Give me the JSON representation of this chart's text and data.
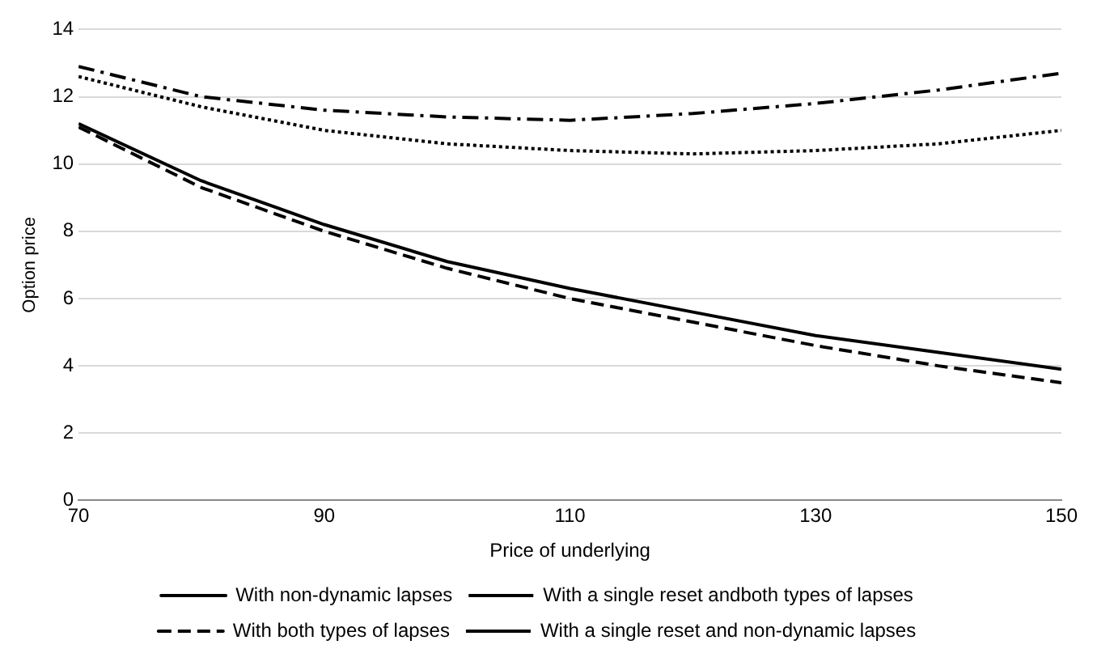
{
  "chart_data": {
    "type": "line",
    "xlabel": "Price of underlying",
    "ylabel": "Option price",
    "x": [
      70,
      80,
      90,
      100,
      110,
      120,
      130,
      140,
      150
    ],
    "xlim": [
      70,
      150
    ],
    "xticks": [
      70,
      90,
      110,
      130,
      150
    ],
    "ylim": [
      0,
      14
    ],
    "yticks": [
      0,
      2,
      4,
      6,
      8,
      10,
      12,
      14
    ],
    "grid": "y",
    "legend": "bottom",
    "marker": "none",
    "series": [
      {
        "name": "With non-dynamic lapses",
        "color": "#000000",
        "line_style": "solid",
        "values": [
          11.2,
          9.5,
          8.2,
          7.1,
          6.3,
          5.6,
          4.9,
          4.4,
          3.9
        ]
      },
      {
        "name": "With a single reset andboth types of lapses",
        "color": "#000000",
        "line_style": "dotted",
        "values": [
          12.6,
          11.7,
          11.0,
          10.6,
          10.4,
          10.3,
          10.4,
          10.6,
          11.0
        ]
      },
      {
        "name": "With both types of lapses",
        "color": "#000000",
        "line_style": "dashed",
        "values": [
          11.1,
          9.3,
          8.0,
          6.9,
          6.0,
          5.3,
          4.6,
          4.0,
          3.5
        ]
      },
      {
        "name": "With a single reset and non-dynamic lapses",
        "color": "#000000",
        "line_style": "dashdot",
        "values": [
          12.9,
          12.0,
          11.6,
          11.4,
          11.3,
          11.5,
          11.8,
          12.2,
          12.7
        ]
      }
    ]
  }
}
